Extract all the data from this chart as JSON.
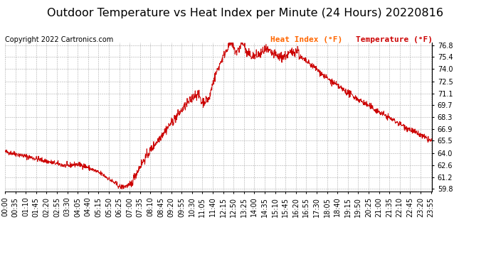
{
  "title": "Outdoor Temperature vs Heat Index per Minute (24 Hours) 20220816",
  "copyright": "Copyright 2022 Cartronics.com",
  "background_color": "#ffffff",
  "plot_bg_color": "#ffffff",
  "grid_color": "#aaaaaa",
  "line_color": "#cc0000",
  "legend_items": [
    "Heat Index (°F)",
    "Temperature (°F)"
  ],
  "legend_color_1": "#ff6600",
  "legend_color_2": "#cc0000",
  "yticks": [
    59.8,
    61.2,
    62.6,
    64.0,
    65.5,
    66.9,
    68.3,
    69.7,
    71.1,
    72.5,
    74.0,
    75.4,
    76.8
  ],
  "ymin": 59.5,
  "ymax": 77.1,
  "title_fontsize": 11.5,
  "tick_fontsize": 7,
  "copyright_fontsize": 7,
  "legend_fontsize": 8
}
